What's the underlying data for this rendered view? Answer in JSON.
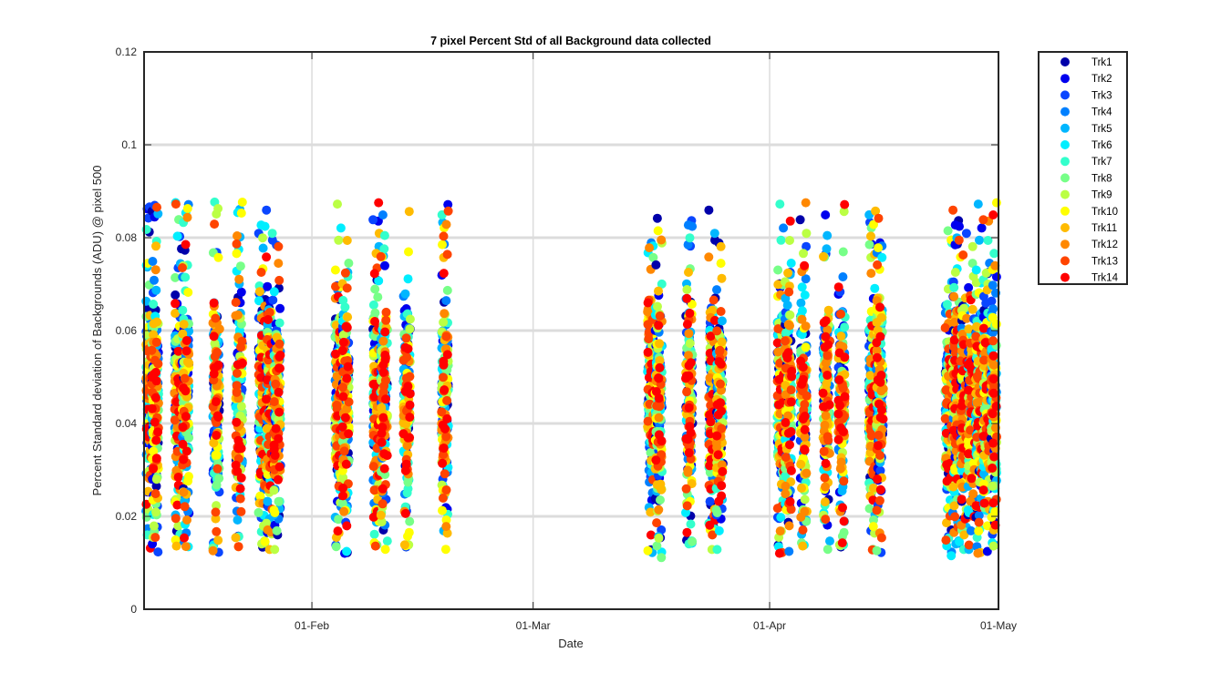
{
  "chart_data": {
    "type": "scatter",
    "title": "7 pixel Percent Std of all Background data collected",
    "xlabel": "Date",
    "ylabel": "Percent Standard deviation of Backgrounds (ADU) @ pixel 500",
    "x_range": [
      "2016-01-10",
      "2016-05-01"
    ],
    "ylim": [
      0,
      0.12
    ],
    "x_ticks": [
      {
        "label": "01-Feb",
        "date": "2016-02-01"
      },
      {
        "label": "01-Mar",
        "date": "2016-03-01"
      },
      {
        "label": "01-Apr",
        "date": "2016-04-01"
      },
      {
        "label": "01-May",
        "date": "2016-05-01"
      }
    ],
    "y_ticks": [
      {
        "label": "0",
        "value": 0
      },
      {
        "label": "0.02",
        "value": 0.02
      },
      {
        "label": "0.04",
        "value": 0.04
      },
      {
        "label": "0.06",
        "value": 0.06
      },
      {
        "label": "0.08",
        "value": 0.08
      },
      {
        "label": "0.1",
        "value": 0.1
      },
      {
        "label": "0.12",
        "value": 0.12
      }
    ],
    "grid": true,
    "legend_position": "outside-top-right",
    "series": [
      {
        "name": "Trk1",
        "color": "#0000aa"
      },
      {
        "name": "Trk2",
        "color": "#0000ee"
      },
      {
        "name": "Trk3",
        "color": "#0a46ff"
      },
      {
        "name": "Trk4",
        "color": "#0080ff"
      },
      {
        "name": "Trk5",
        "color": "#00b6ff"
      },
      {
        "name": "Trk6",
        "color": "#00eeff"
      },
      {
        "name": "Trk7",
        "color": "#33ffcc"
      },
      {
        "name": "Trk8",
        "color": "#77ff88"
      },
      {
        "name": "Trk9",
        "color": "#bbff44"
      },
      {
        "name": "Trk10",
        "color": "#ffff00"
      },
      {
        "name": "Trk11",
        "color": "#ffbb00"
      },
      {
        "name": "Trk12",
        "color": "#ff8800"
      },
      {
        "name": "Trk13",
        "color": "#ff4400"
      },
      {
        "name": "Trk14",
        "color": "#ff0000"
      }
    ],
    "collection_dates": [
      "2016-01-10",
      "2016-01-11",
      "2016-01-14",
      "2016-01-15",
      "2016-01-19",
      "2016-01-22",
      "2016-01-25",
      "2016-01-26",
      "2016-01-27",
      "2016-02-04",
      "2016-02-05",
      "2016-02-09",
      "2016-02-10",
      "2016-02-13",
      "2016-02-18",
      "2016-03-16",
      "2016-03-17",
      "2016-03-21",
      "2016-03-24",
      "2016-03-25",
      "2016-04-02",
      "2016-04-03",
      "2016-04-05",
      "2016-04-08",
      "2016-04-10",
      "2016-04-14",
      "2016-04-15",
      "2016-04-24",
      "2016-04-25",
      "2016-04-26",
      "2016-04-27",
      "2016-04-28",
      "2016-04-29",
      "2016-04-30"
    ]
  }
}
